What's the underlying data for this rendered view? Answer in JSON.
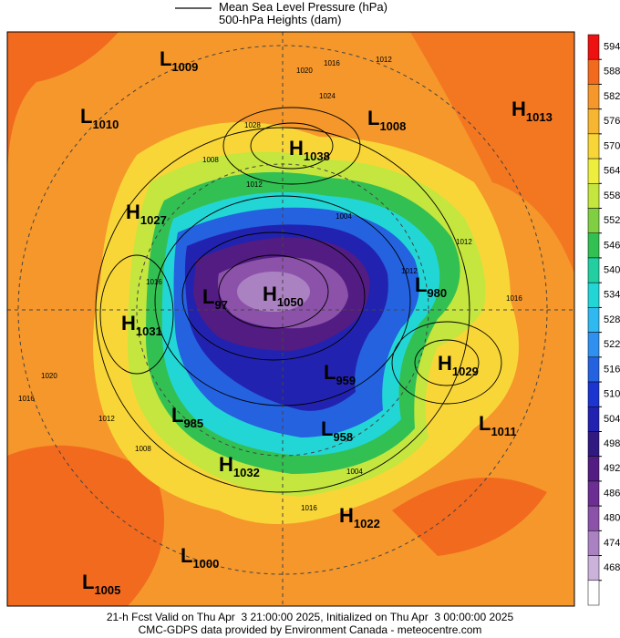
{
  "header": {
    "legend_line1": "Mean Sea Level Pressure (hPa)",
    "legend_line2": "500-hPa Heights (dam)"
  },
  "colorbar": {
    "ticks": [
      594,
      588,
      582,
      576,
      570,
      564,
      558,
      552,
      546,
      540,
      534,
      528,
      522,
      516,
      510,
      504,
      498,
      492,
      486,
      480,
      474,
      468
    ],
    "colors": [
      "#ee1111",
      "#f26a1e",
      "#f5972b",
      "#f7b631",
      "#f9d637",
      "#eeee3e",
      "#c4e63e",
      "#80cf42",
      "#33c052",
      "#22cfa0",
      "#22d6d6",
      "#30b8f0",
      "#3090f0",
      "#2462e0",
      "#1c34d0",
      "#2222b0",
      "#301a82",
      "#521c82",
      "#6c2e92",
      "#8c52aa",
      "#aa82c2",
      "#cab2da",
      "#ffffff"
    ]
  },
  "systems": [
    {
      "type": "L",
      "value": 1009
    },
    {
      "type": "L",
      "value": 1010
    },
    {
      "type": "L",
      "value": 1008
    },
    {
      "type": "H",
      "value": 1013
    },
    {
      "type": "H",
      "value": 1038
    },
    {
      "type": "H",
      "value": 1027
    },
    {
      "type": "L",
      "value": 980
    },
    {
      "type": "L",
      "value": 97
    },
    {
      "type": "H",
      "value": 1050
    },
    {
      "type": "H",
      "value": 1031
    },
    {
      "type": "H",
      "value": 1029
    },
    {
      "type": "L",
      "value": 959
    },
    {
      "type": "L",
      "value": 985
    },
    {
      "type": "L",
      "value": 1011
    },
    {
      "type": "L",
      "value": 958
    },
    {
      "type": "H",
      "value": 1032
    },
    {
      "type": "H",
      "value": 1022
    },
    {
      "type": "L",
      "value": 1000
    },
    {
      "type": "L",
      "value": 1005
    }
  ],
  "contour_labels": [
    1016,
    1012,
    1020,
    1024,
    1028,
    1008,
    1012,
    1004,
    1012,
    1016,
    1016,
    1016,
    1020,
    1012,
    1008,
    1004,
    1016,
    1012
  ],
  "footer": {
    "line1": "21-h Fcst Valid on Thu Apr  3 21:00:00 2025, Initialized on Thu Apr  3 00:00:00 2025",
    "line2": "CMC-GDPS data provided by Environment Canada - meteocentre.com"
  }
}
